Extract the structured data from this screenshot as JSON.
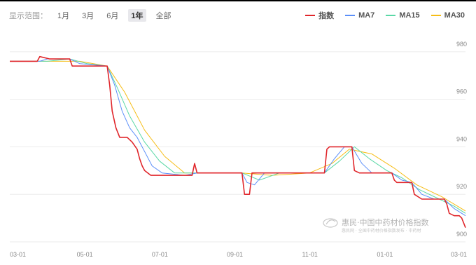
{
  "range_selector": {
    "label": "显示范围：",
    "options": [
      "1月",
      "3月",
      "6月",
      "1年",
      "全部"
    ],
    "active_index": 3
  },
  "watermark": {
    "text": "惠民·中国中药材价格指数",
    "sub": "惠民网 · 全国中药材价格指数发布 · 中药材"
  },
  "chart_data": {
    "type": "line",
    "x_ticks": [
      "03-01",
      "05-01",
      "07-01",
      "09-01",
      "11-01",
      "01-01",
      "03-01"
    ],
    "y_ticks": [
      900,
      920,
      940,
      960,
      980
    ],
    "ylim": [
      900,
      990
    ],
    "xlim": [
      0,
      365
    ],
    "grid": true,
    "legend_position": "top-right",
    "series": [
      {
        "name": "指数",
        "color": "#e0262b",
        "points": [
          [
            0,
            976
          ],
          [
            22,
            976
          ],
          [
            24,
            978
          ],
          [
            32,
            977
          ],
          [
            48,
            977
          ],
          [
            50,
            974
          ],
          [
            66,
            974
          ],
          [
            78,
            974
          ],
          [
            80,
            966
          ],
          [
            82,
            955
          ],
          [
            85,
            948
          ],
          [
            88,
            944
          ],
          [
            94,
            944
          ],
          [
            98,
            942
          ],
          [
            102,
            939
          ],
          [
            104,
            935
          ],
          [
            106,
            932
          ],
          [
            108,
            930
          ],
          [
            113,
            928
          ],
          [
            128,
            928
          ],
          [
            140,
            928
          ],
          [
            146,
            928
          ],
          [
            148,
            933
          ],
          [
            150,
            929
          ],
          [
            156,
            929
          ],
          [
            180,
            929
          ],
          [
            186,
            929
          ],
          [
            188,
            920
          ],
          [
            192,
            920
          ],
          [
            194,
            929
          ],
          [
            240,
            929
          ],
          [
            252,
            929
          ],
          [
            254,
            939
          ],
          [
            256,
            940
          ],
          [
            268,
            940
          ],
          [
            272,
            940
          ],
          [
            274,
            940
          ],
          [
            276,
            930
          ],
          [
            280,
            929
          ],
          [
            306,
            929
          ],
          [
            308,
            926
          ],
          [
            310,
            925
          ],
          [
            321,
            925
          ],
          [
            322,
            925
          ],
          [
            324,
            920
          ],
          [
            330,
            918
          ],
          [
            336,
            918
          ],
          [
            348,
            918
          ],
          [
            350,
            916
          ],
          [
            352,
            912
          ],
          [
            356,
            911
          ],
          [
            360,
            911
          ],
          [
            362,
            910
          ],
          [
            365,
            906
          ]
        ]
      },
      {
        "name": "MA7",
        "color": "#5b8ff9",
        "points": [
          [
            0,
            976
          ],
          [
            24,
            976
          ],
          [
            30,
            977
          ],
          [
            48,
            977
          ],
          [
            56,
            975
          ],
          [
            78,
            974
          ],
          [
            84,
            966
          ],
          [
            90,
            955
          ],
          [
            96,
            948
          ],
          [
            102,
            944
          ],
          [
            108,
            938
          ],
          [
            114,
            932
          ],
          [
            122,
            929
          ],
          [
            140,
            928
          ],
          [
            150,
            929
          ],
          [
            186,
            929
          ],
          [
            190,
            925
          ],
          [
            196,
            924
          ],
          [
            204,
            929
          ],
          [
            252,
            929
          ],
          [
            260,
            935
          ],
          [
            268,
            940
          ],
          [
            274,
            940
          ],
          [
            282,
            933
          ],
          [
            290,
            929
          ],
          [
            306,
            929
          ],
          [
            314,
            926
          ],
          [
            322,
            925
          ],
          [
            330,
            920
          ],
          [
            340,
            918
          ],
          [
            348,
            918
          ],
          [
            356,
            914
          ],
          [
            365,
            911
          ]
        ]
      },
      {
        "name": "MA15",
        "color": "#5ad8a6",
        "points": [
          [
            0,
            976
          ],
          [
            30,
            976
          ],
          [
            48,
            977
          ],
          [
            62,
            975
          ],
          [
            78,
            974
          ],
          [
            86,
            965
          ],
          [
            96,
            953
          ],
          [
            108,
            942
          ],
          [
            120,
            934
          ],
          [
            132,
            929
          ],
          [
            150,
            929
          ],
          [
            186,
            929
          ],
          [
            200,
            926
          ],
          [
            216,
            929
          ],
          [
            252,
            929
          ],
          [
            264,
            934
          ],
          [
            276,
            940
          ],
          [
            288,
            935
          ],
          [
            302,
            930
          ],
          [
            314,
            927
          ],
          [
            328,
            922
          ],
          [
            344,
            918
          ],
          [
            356,
            915
          ],
          [
            365,
            912
          ]
        ]
      },
      {
        "name": "MA30",
        "color": "#f6bd16",
        "points": [
          [
            0,
            976
          ],
          [
            40,
            976
          ],
          [
            56,
            976
          ],
          [
            78,
            974
          ],
          [
            92,
            963
          ],
          [
            108,
            947
          ],
          [
            124,
            936
          ],
          [
            140,
            929
          ],
          [
            160,
            929
          ],
          [
            186,
            929
          ],
          [
            210,
            928
          ],
          [
            240,
            929
          ],
          [
            258,
            933
          ],
          [
            272,
            939
          ],
          [
            290,
            937
          ],
          [
            308,
            931
          ],
          [
            326,
            924
          ],
          [
            346,
            919
          ],
          [
            365,
            913
          ]
        ]
      }
    ]
  }
}
